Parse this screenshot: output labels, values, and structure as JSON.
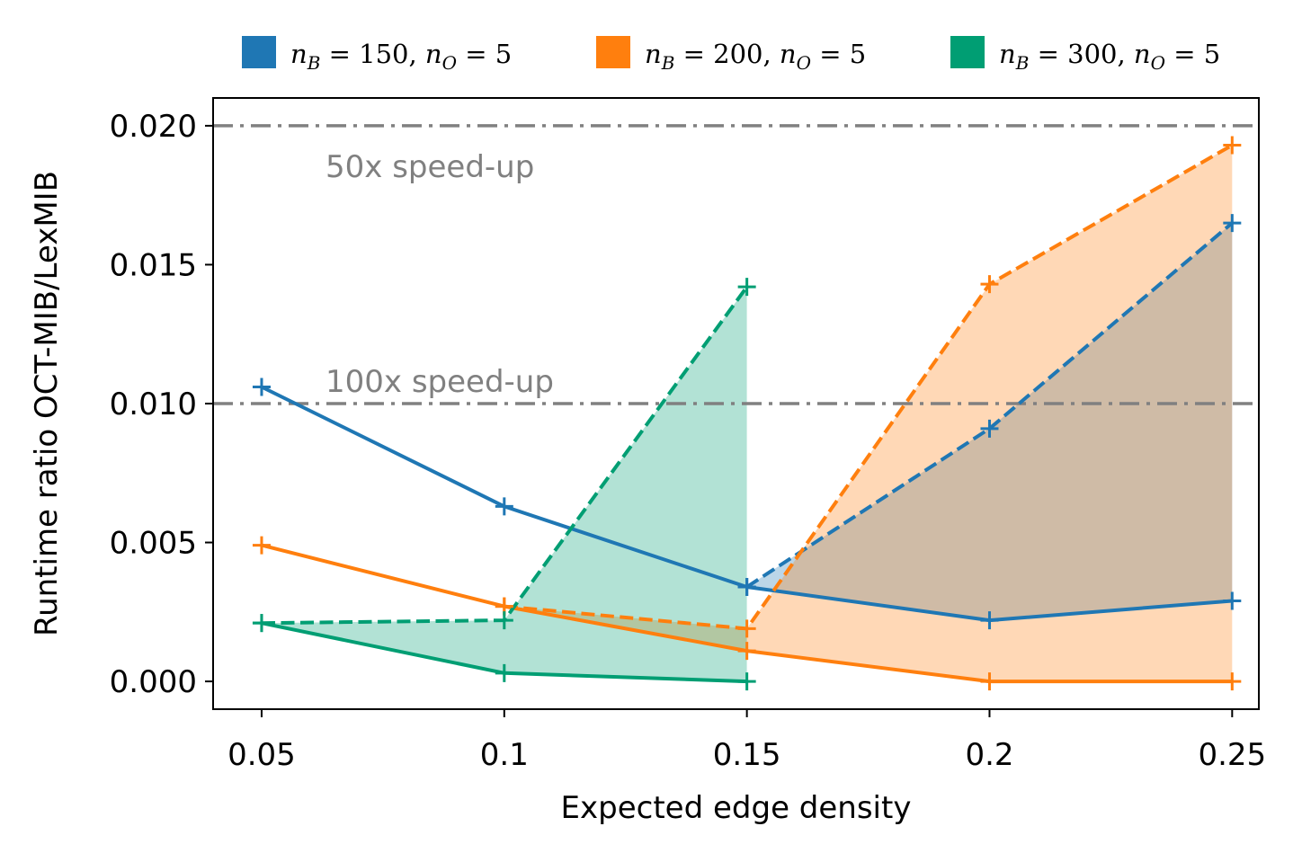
{
  "chart_data": {
    "type": "line",
    "title": "",
    "xlabel": "Expected edge density",
    "ylabel": "Runtime ratio OCT-MIB/LexMIB",
    "xlim": [
      0.04,
      0.2555
    ],
    "ylim": [
      -0.001,
      0.021
    ],
    "x_ticks": [
      0.05,
      0.1,
      0.15,
      0.2,
      0.25
    ],
    "x_tick_labels": [
      "0.05",
      "0.1",
      "0.15",
      "0.2",
      "0.25"
    ],
    "y_ticks": [
      0,
      0.005,
      0.01,
      0.015,
      0.02
    ],
    "y_tick_labels": [
      "0.000",
      "0.005",
      "0.010",
      "0.015",
      "0.020"
    ],
    "legend_position": "top",
    "reference_lines": [
      {
        "y": 0.02,
        "label": "50x speed-up",
        "style": "dash-dot",
        "color": "#808080"
      },
      {
        "y": 0.01,
        "label": "100x speed-up",
        "style": "dash-dot",
        "color": "#808080"
      }
    ],
    "series": [
      {
        "name": "n_B=150, n_O=5",
        "legend": {
          "b": "150",
          "o": "5"
        },
        "color": "#1f77b4",
        "solid": {
          "x": [
            0.05,
            0.1,
            0.15,
            0.2,
            0.25
          ],
          "y": [
            0.0106,
            0.0063,
            0.0034,
            0.0022,
            0.0029
          ]
        },
        "dashed": {
          "x": [
            0.15,
            0.2,
            0.25
          ],
          "y": [
            0.0034,
            0.0091,
            0.0165
          ]
        }
      },
      {
        "name": "n_B=200, n_O=5",
        "legend": {
          "b": "200",
          "o": "5"
        },
        "color": "#ff7f0e",
        "solid": {
          "x": [
            0.05,
            0.1,
            0.15,
            0.2,
            0.25
          ],
          "y": [
            0.0049,
            0.0027,
            0.0011,
            0.0,
            0.0
          ]
        },
        "dashed": {
          "x": [
            0.1,
            0.15,
            0.2,
            0.25
          ],
          "y": [
            0.0027,
            0.0019,
            0.0143,
            0.0193
          ]
        }
      },
      {
        "name": "n_B=300, n_O=5",
        "legend": {
          "b": "300",
          "o": "5"
        },
        "color": "#009e73",
        "solid": {
          "x": [
            0.05,
            0.1,
            0.15
          ],
          "y": [
            0.0021,
            0.0003,
            0.0
          ]
        },
        "dashed": {
          "x": [
            0.05,
            0.1,
            0.15
          ],
          "y": [
            0.0021,
            0.0022,
            0.0142
          ]
        }
      }
    ]
  }
}
